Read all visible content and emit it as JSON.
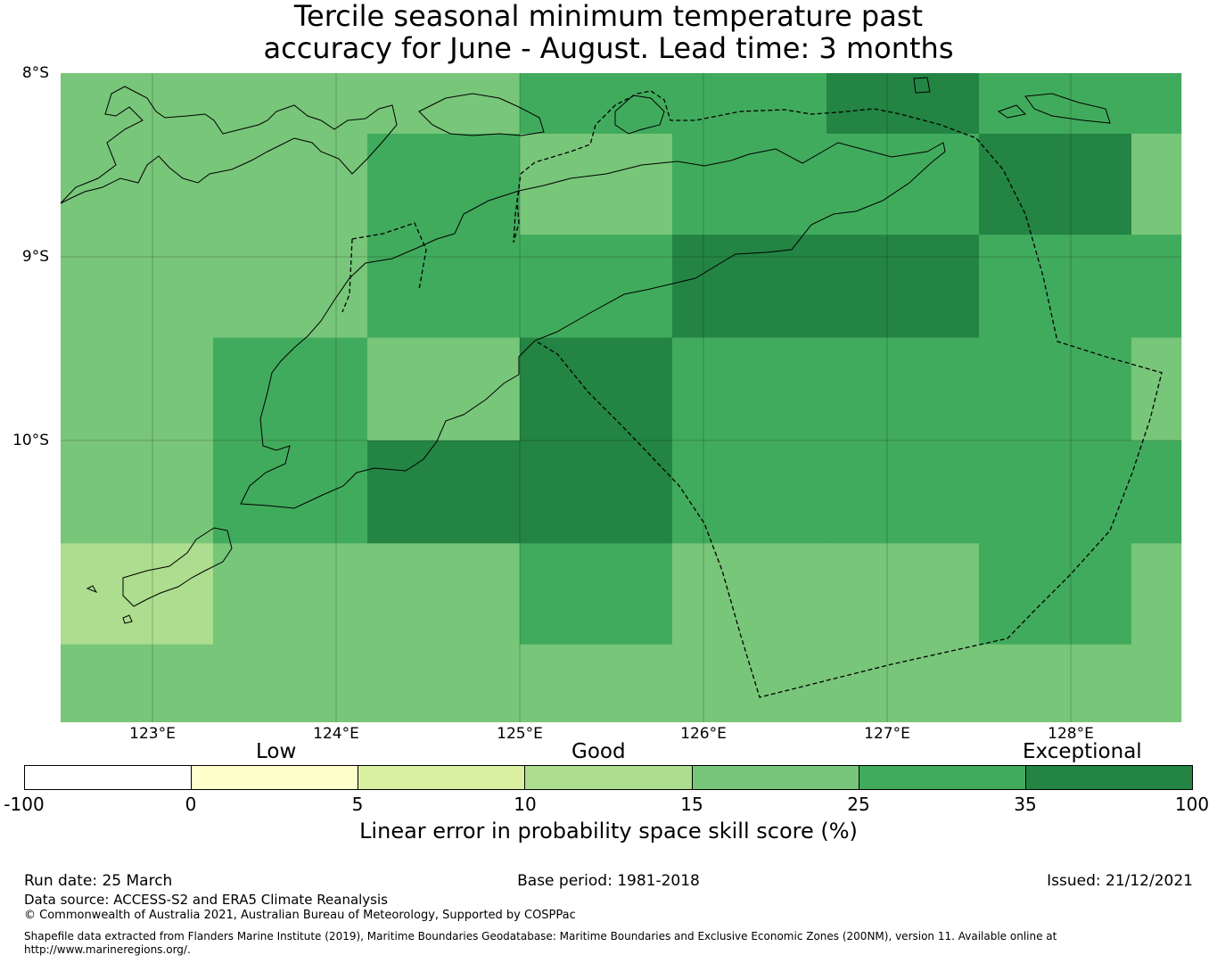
{
  "title": {
    "line1": "Tercile seasonal minimum temperature past",
    "line2": "accuracy for June - August. Lead time: 3 months"
  },
  "map": {
    "lat_labels": [
      "8°S",
      "9°S",
      "10°S"
    ],
    "lon_labels": [
      "123°E",
      "124°E",
      "125°E",
      "126°E",
      "127°E",
      "128°E"
    ],
    "grid_lons": [
      122.5,
      123.33,
      124.17,
      125.0,
      125.83,
      126.67,
      127.5,
      128.33,
      128.6
    ],
    "grid_lats": [
      -8.0,
      -8.33,
      -8.88,
      -9.44,
      -10.0,
      -10.56,
      -11.11,
      -11.55
    ],
    "skill_cells": [
      [
        18,
        18,
        18,
        30,
        30,
        40,
        30,
        30
      ],
      [
        18,
        18,
        30,
        18,
        30,
        30,
        40,
        18
      ],
      [
        18,
        18,
        30,
        30,
        40,
        40,
        30,
        30
      ],
      [
        18,
        30,
        18,
        40,
        30,
        30,
        30,
        18
      ],
      [
        18,
        30,
        40,
        40,
        30,
        30,
        30,
        30
      ],
      [
        12,
        18,
        18,
        30,
        18,
        18,
        30,
        18
      ],
      [
        18,
        18,
        18,
        18,
        18,
        18,
        18,
        18
      ]
    ]
  },
  "legend": {
    "categories": [
      "Low",
      "Good",
      "Exceptional"
    ],
    "ticks": [
      "-100",
      "0",
      "5",
      "10",
      "15",
      "25",
      "35",
      "100"
    ],
    "colors": [
      "#ffffff",
      "#ffffcc",
      "#d9f0a3",
      "#addd8e",
      "#78c679",
      "#41ab5d",
      "#238443"
    ],
    "label": "Linear error in probability space skill score (%)"
  },
  "footer": {
    "run_date": "Run date: 25 March",
    "base_period": "Base period: 1981-2018",
    "issued": "Issued: 21/12/2021",
    "data_source": "Data source: ACCESS-S2 and ERA5 Climate Reanalysis",
    "copyright": "© Commonwealth of Australia 2021, Australian Bureau of Meteorology, Supported by COSPPac",
    "shapefile_line1": "Shapefile data extracted from Flanders Marine Institute (2019), Maritime Boundaries Geodatabase: Maritime Boundaries and Exclusive Economic Zones (200NM), version 11. Available online at",
    "shapefile_line2": "http://www.marineregions.org/."
  }
}
